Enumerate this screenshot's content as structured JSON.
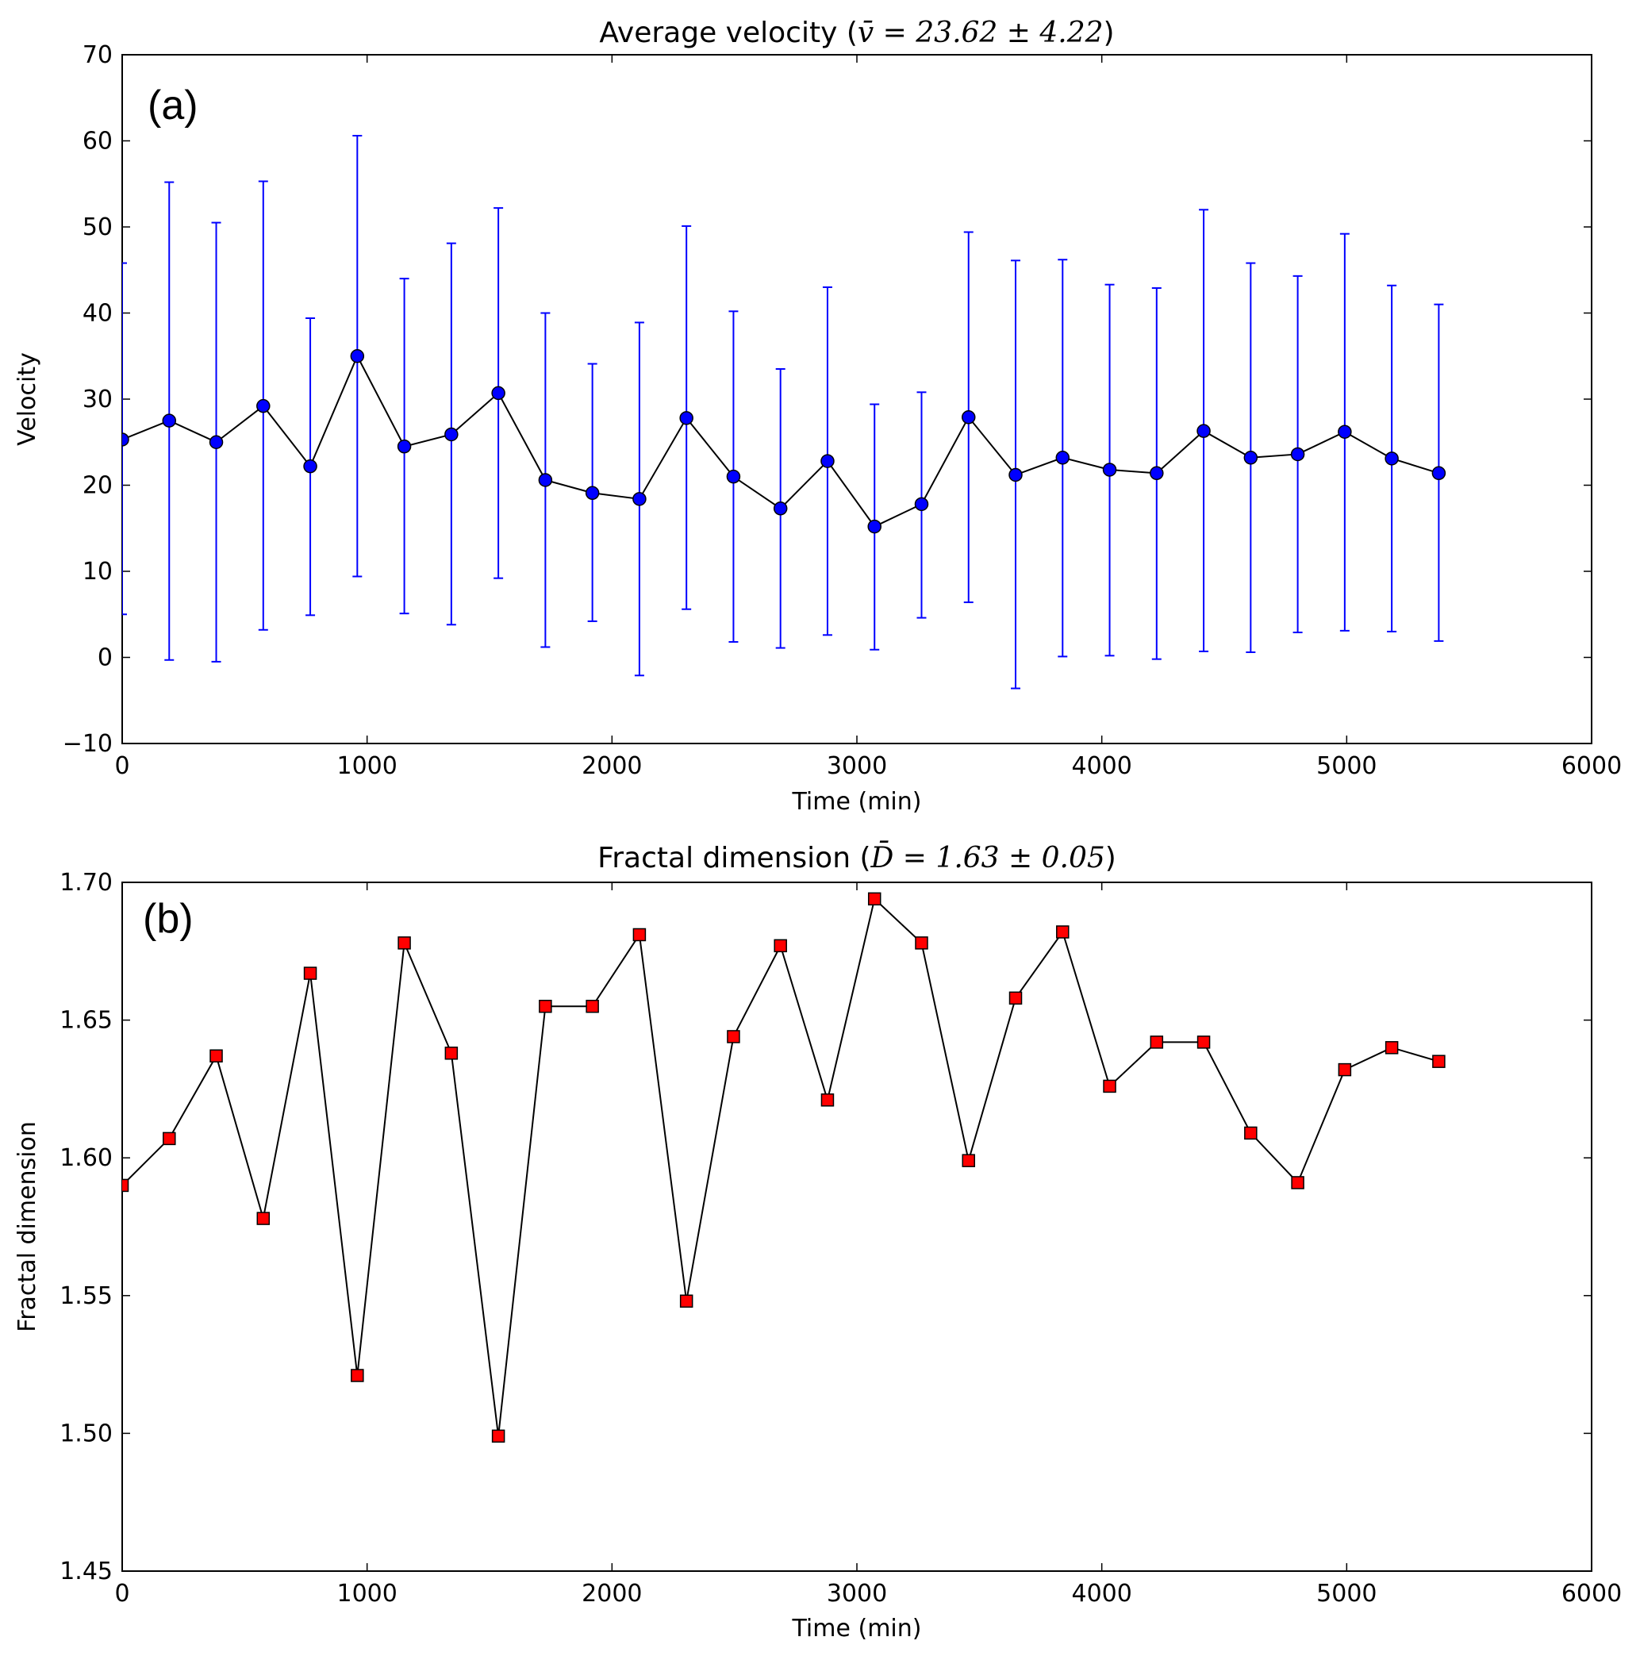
{
  "chart_data": [
    {
      "type": "line",
      "panel_label": "(a)",
      "title": "Average velocity",
      "title_math": "v̄ = 23.62 ± 4.22",
      "xlabel": "Time (min)",
      "ylabel": "Velocity",
      "xlim": [
        0,
        6000
      ],
      "ylim": [
        -10,
        70
      ],
      "xticks": [
        0,
        1000,
        2000,
        3000,
        4000,
        5000,
        6000
      ],
      "yticks": [
        -10,
        0,
        10,
        20,
        30,
        40,
        50,
        60,
        70
      ],
      "ytick_labels": [
        "−10",
        "0",
        "10",
        "20",
        "30",
        "40",
        "50",
        "60",
        "70"
      ],
      "grid": false,
      "marker": "circle",
      "marker_color": "#0000ff",
      "line_color": "#000000",
      "errorbar_color": "#0000ff",
      "series": [
        {
          "name": "Average velocity",
          "x": [
            0,
            192,
            384,
            576,
            768,
            960,
            1152,
            1344,
            1536,
            1728,
            1920,
            2112,
            2304,
            2496,
            2688,
            2880,
            3072,
            3264,
            3456,
            3648,
            3840,
            4032,
            4224,
            4416,
            4608,
            4800,
            4992,
            5184,
            5376
          ],
          "y": [
            25.3,
            27.5,
            25.0,
            29.2,
            22.2,
            35.0,
            24.5,
            25.9,
            30.7,
            20.6,
            19.1,
            18.4,
            27.8,
            21.0,
            17.3,
            22.8,
            15.2,
            17.8,
            27.9,
            21.2,
            23.2,
            21.8,
            21.4,
            26.3,
            23.2,
            23.6,
            26.2,
            23.1,
            21.4
          ],
          "yerr_low": [
            5.0,
            -0.3,
            -0.5,
            3.2,
            4.9,
            9.4,
            5.1,
            3.8,
            9.2,
            1.2,
            4.2,
            -2.1,
            5.6,
            1.8,
            1.1,
            2.6,
            0.9,
            4.6,
            6.4,
            -3.6,
            0.1,
            0.2,
            -0.2,
            0.7,
            0.6,
            2.9,
            3.1,
            3.0,
            1.9
          ],
          "yerr_high": [
            45.8,
            55.2,
            50.5,
            55.3,
            39.4,
            60.6,
            44.0,
            48.1,
            52.2,
            40.0,
            34.1,
            38.9,
            50.1,
            40.2,
            33.5,
            43.0,
            29.4,
            30.8,
            49.4,
            46.1,
            46.2,
            43.3,
            42.9,
            52.0,
            45.8,
            44.3,
            49.2,
            43.2,
            41.0
          ]
        }
      ]
    },
    {
      "type": "line",
      "panel_label": "(b)",
      "title": "Fractal dimension",
      "title_math": "D̄ = 1.63 ± 0.05",
      "xlabel": "Time (min)",
      "ylabel": "Fractal dimension",
      "xlim": [
        0,
        6000
      ],
      "ylim": [
        1.45,
        1.7
      ],
      "xticks": [
        0,
        1000,
        2000,
        3000,
        4000,
        5000,
        6000
      ],
      "yticks": [
        1.45,
        1.5,
        1.55,
        1.6,
        1.65,
        1.7
      ],
      "ytick_labels": [
        "1.45",
        "1.50",
        "1.55",
        "1.60",
        "1.65",
        "1.70"
      ],
      "grid": false,
      "marker": "square",
      "marker_color": "#ff0000",
      "line_color": "#000000",
      "series": [
        {
          "name": "Fractal dimension",
          "x": [
            0,
            192,
            384,
            576,
            768,
            960,
            1152,
            1344,
            1536,
            1728,
            1920,
            2112,
            2304,
            2496,
            2688,
            2880,
            3072,
            3264,
            3456,
            3648,
            3840,
            4032,
            4224,
            4416,
            4608,
            4800,
            4992,
            5184,
            5376
          ],
          "y": [
            1.59,
            1.607,
            1.637,
            1.578,
            1.667,
            1.521,
            1.678,
            1.638,
            1.499,
            1.655,
            1.655,
            1.681,
            1.548,
            1.644,
            1.677,
            1.621,
            1.694,
            1.678,
            1.599,
            1.658,
            1.682,
            1.626,
            1.642,
            1.642,
            1.609,
            1.591,
            1.632,
            1.64,
            1.635
          ]
        }
      ]
    }
  ]
}
